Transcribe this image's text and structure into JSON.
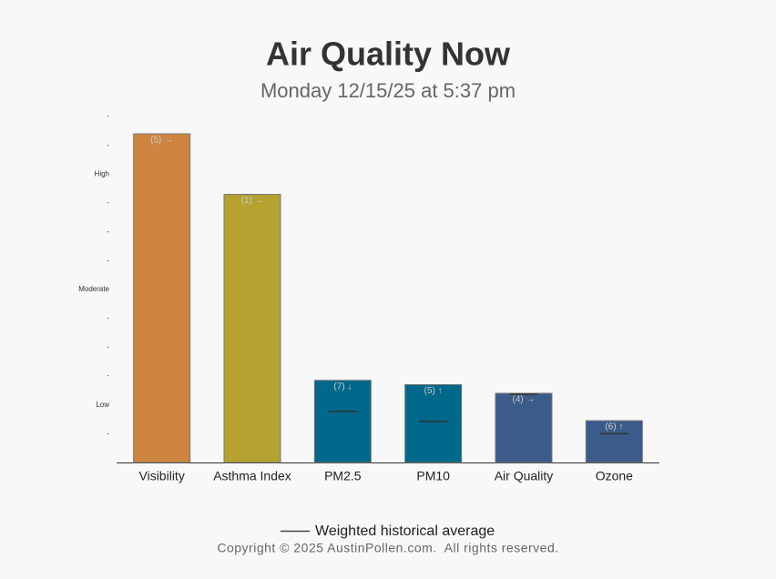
{
  "chart_data": {
    "type": "bar",
    "title": "Air Quality Now",
    "subtitle": "Monday 12/15/25 at 5:37 pm",
    "categories": [
      "Visibility",
      "Asthma Index",
      "PM2.5",
      "PM10",
      "Air Quality",
      "Ozone"
    ],
    "values": [
      11.4,
      9.3,
      2.85,
      2.7,
      2.4,
      1.45
    ],
    "annotations": [
      "(5) →",
      "(1) →",
      "(7) ↓",
      "(5) ↑",
      "(4) →",
      "(6) ↑"
    ],
    "colors": [
      "#cd853f",
      "#b5a230",
      "#00688b",
      "#00688b",
      "#3b5b8b",
      "#3b5b8b"
    ],
    "historical": {
      "name": "Weighted historical average",
      "values": [
        null,
        null,
        1.77,
        1.42,
        2.37,
        1.0
      ]
    },
    "ylim": [
      0,
      12
    ],
    "yticks": [
      {
        "value": 1,
        "label": "-"
      },
      {
        "value": 2,
        "label": "Low"
      },
      {
        "value": 3,
        "label": "-"
      },
      {
        "value": 4,
        "label": "-"
      },
      {
        "value": 5,
        "label": "-"
      },
      {
        "value": 6,
        "label": "Moderate"
      },
      {
        "value": 7,
        "label": "-"
      },
      {
        "value": 8,
        "label": "-"
      },
      {
        "value": 9,
        "label": "-"
      },
      {
        "value": 10,
        "label": "High"
      },
      {
        "value": 11,
        "label": "-"
      },
      {
        "value": 12,
        "label": "-"
      }
    ],
    "footer": "Copyright © 2025 AustinPollen.com.  All rights reserved."
  }
}
